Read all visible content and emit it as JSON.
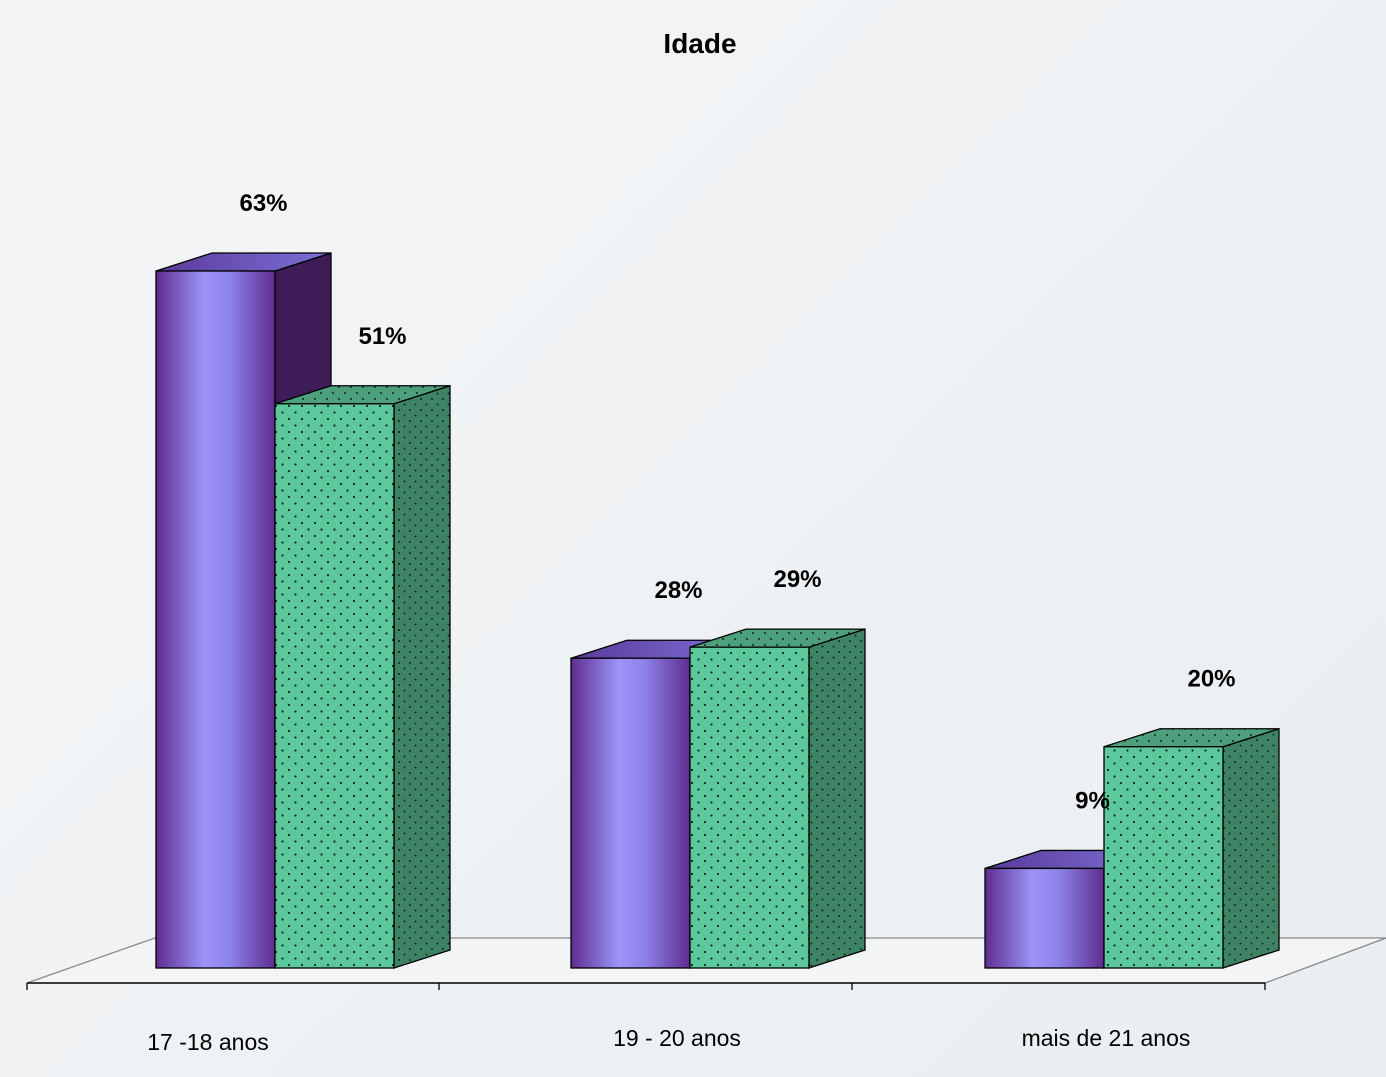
{
  "chart_data": {
    "type": "bar",
    "title": "Idade",
    "categories": [
      "17 -18 anos",
      "19 - 20 anos",
      "mais de 21 anos"
    ],
    "series": [
      {
        "values": [
          63,
          28,
          9
        ],
        "labels": [
          "63%",
          "28%",
          "9%"
        ]
      },
      {
        "values": [
          51,
          29,
          20
        ],
        "labels": [
          "51%",
          "29%",
          "20%"
        ]
      }
    ],
    "value_format": "percent",
    "ylim": [
      0,
      63
    ],
    "grid": false,
    "legend": "none",
    "colors": {
      "series1_light": "#9c94f8",
      "series1_dark": "#5e2d8e",
      "series1_side": "#3e1c57",
      "series2_front": "#5cc89c",
      "series2_side": "#3e8464",
      "series2_top": "#4ea07c",
      "dots": "#0d2a1c"
    }
  }
}
